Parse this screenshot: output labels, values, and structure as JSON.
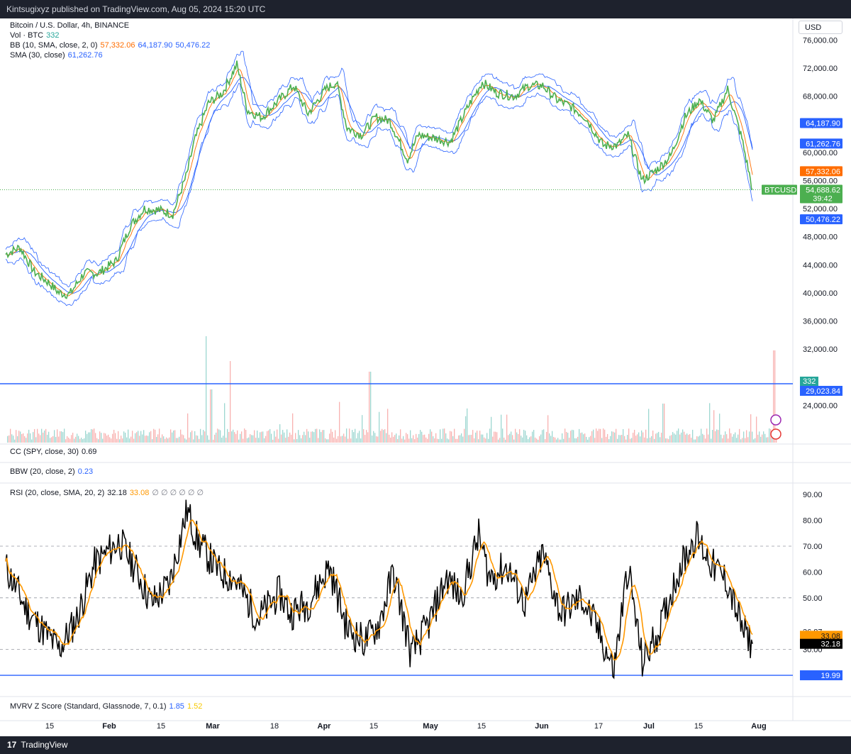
{
  "header": {
    "text": "Kintsugixyz published on TradingView.com, Aug 05, 2024 15:20 UTC"
  },
  "currency_button": "USD",
  "footer": {
    "brand": "TradingView"
  },
  "colors": {
    "candle_line": "#4caf50",
    "bb_upper": "#2962ff",
    "bb_lower": "#2962ff",
    "bb_basis": "#ff6d00",
    "sma": "#2962ff",
    "rsi": "#000000",
    "rsi_ma": "#ff9800",
    "vol_up": "#26a69a",
    "vol_down": "#ef5350"
  },
  "legend": {
    "title": "Bitcoin / U.S. Dollar, 4h, BINANCE",
    "vol_label": "Vol · BTC",
    "vol_value": "332",
    "bb_label": "BB (10, SMA, close, 2, 0)",
    "bb_basis": "57,332.06",
    "bb_upper": "64,187.90",
    "bb_lower": "50,476.22",
    "sma_label": "SMA (30, close)",
    "sma_value": "61,262.76",
    "cc_label": "CC (SPY, close, 30)",
    "cc_value": "0.69",
    "bbw_label": "BBW (20, close, 2)",
    "bbw_value": "0.23",
    "rsi_label": "RSI (20, close, SMA, 20, 2)",
    "rsi_value": "32.18",
    "rsi_ma_value": "33.08",
    "rsi_na": "∅ ∅ ∅ ∅ ∅ ∅",
    "mvrv_label": "MVRV Z Score (Standard, Glassnode, 7, 0.1)",
    "mvrv_value_1": "1.85",
    "mvrv_value_2": "1.52"
  },
  "price_axis": {
    "ticks": [
      "76,000.00",
      "72,000.00",
      "68,000.00",
      "64,000.00",
      "60,000.00",
      "56,000.00",
      "52,000.00",
      "48,000.00",
      "44,000.00",
      "40,000.00",
      "36,000.00",
      "32,000.00",
      "24,000.00"
    ],
    "tick_values": [
      76000,
      72000,
      68000,
      64000,
      60000,
      56000,
      52000,
      48000,
      44000,
      40000,
      36000,
      32000,
      24000
    ]
  },
  "price_labels": [
    {
      "text": "64,187.90",
      "value": 64187.9,
      "color": "#2962ff"
    },
    {
      "text": "61,262.76",
      "value": 61262.76,
      "color": "#2962ff"
    },
    {
      "text": "57,332.06",
      "value": 57332.06,
      "color": "#ff6d00"
    },
    {
      "text": "50,476.22",
      "value": 50476.22,
      "color": "#2962ff"
    }
  ],
  "last_price": {
    "symbol": "BTCUSD",
    "price": "54,688.62",
    "countdown": "39:42",
    "value": 54688.62
  },
  "volume_labels": {
    "vol": "332",
    "line_value": "29,023.84"
  },
  "rsi_axis": {
    "ticks": [
      "90.00",
      "80.00",
      "70.00",
      "60.00",
      "50.00",
      "36.87",
      "32.55",
      "30.00"
    ],
    "tick_values": [
      90,
      80,
      70,
      60,
      50,
      36.87,
      32.55,
      30
    ]
  },
  "rsi_labels": {
    "rsi_ma": "33.08",
    "rsi": "32.18",
    "line": "19.99"
  },
  "chart_data": {
    "type": "line",
    "title": "Bitcoin / U.S. Dollar, 4h, BINANCE",
    "x_tick_labels": [
      "15",
      "Feb",
      "15",
      "Mar",
      "18",
      "Apr",
      "15",
      "May",
      "15",
      "Jun",
      "17",
      "Jul",
      "15",
      "Aug"
    ],
    "price_range": [
      32000,
      78000
    ],
    "price_series_approx": {
      "name": "BTCUSD close (approx.)",
      "dates": [
        "2024-01-08",
        "2024-01-12",
        "2024-01-16",
        "2024-01-20",
        "2024-01-23",
        "2024-01-26",
        "2024-01-30",
        "2024-02-03",
        "2024-02-08",
        "2024-02-12",
        "2024-02-16",
        "2024-02-20",
        "2024-02-24",
        "2024-02-28",
        "2024-03-01",
        "2024-03-05",
        "2024-03-09",
        "2024-03-13",
        "2024-03-16",
        "2024-03-20",
        "2024-03-25",
        "2024-03-29",
        "2024-04-02",
        "2024-04-07",
        "2024-04-10",
        "2024-04-13",
        "2024-04-17",
        "2024-04-21",
        "2024-04-25",
        "2024-04-30",
        "2024-05-03",
        "2024-05-08",
        "2024-05-12",
        "2024-05-17",
        "2024-05-21",
        "2024-05-25",
        "2024-05-30",
        "2024-06-03",
        "2024-06-07",
        "2024-06-11",
        "2024-06-15",
        "2024-06-19",
        "2024-06-24",
        "2024-06-28",
        "2024-07-01",
        "2024-07-05",
        "2024-07-09",
        "2024-07-13",
        "2024-07-17",
        "2024-07-21",
        "2024-07-25",
        "2024-07-29",
        "2024-08-02",
        "2024-08-05"
      ],
      "values": [
        45500,
        46500,
        43000,
        41500,
        40000,
        39800,
        42800,
        42800,
        44500,
        49500,
        52000,
        51800,
        51200,
        57000,
        61500,
        67000,
        68500,
        72500,
        66000,
        65000,
        67500,
        69500,
        65500,
        69000,
        70000,
        63500,
        62500,
        65000,
        64500,
        59000,
        62500,
        62000,
        61500,
        66500,
        70000,
        68500,
        68000,
        69500,
        69500,
        67500,
        66500,
        65000,
        61000,
        61000,
        62500,
        56000,
        57500,
        59500,
        65000,
        67500,
        64500,
        69000,
        62000,
        54688.62
      ]
    },
    "bollinger_last": {
      "basis": 57332.06,
      "upper": 64187.9,
      "lower": 50476.22
    },
    "sma30_last": 61262.76,
    "volume_last": 332,
    "volume_line": 29023.84,
    "rsi": {
      "range": [
        15,
        95
      ],
      "levels": [
        70,
        50,
        30,
        19.99
      ],
      "last": 32.18,
      "ma_last": 33.08,
      "dates": [
        "2024-01-08",
        "2024-01-14",
        "2024-01-20",
        "2024-01-23",
        "2024-01-28",
        "2024-02-02",
        "2024-02-09",
        "2024-02-14",
        "2024-02-18",
        "2024-02-23",
        "2024-02-28",
        "2024-03-02",
        "2024-03-08",
        "2024-03-12",
        "2024-03-19",
        "2024-03-25",
        "2024-03-28",
        "2024-04-02",
        "2024-04-08",
        "2024-04-13",
        "2024-04-18",
        "2024-04-22",
        "2024-04-26",
        "2024-05-01",
        "2024-05-06",
        "2024-05-11",
        "2024-05-15",
        "2024-05-20",
        "2024-05-23",
        "2024-05-28",
        "2024-06-02",
        "2024-06-07",
        "2024-06-12",
        "2024-06-18",
        "2024-06-23",
        "2024-06-27",
        "2024-07-01",
        "2024-07-05",
        "2024-07-10",
        "2024-07-15",
        "2024-07-20",
        "2024-07-25",
        "2024-07-29",
        "2024-08-02",
        "2024-08-05"
      ],
      "values": [
        62,
        45,
        35,
        30,
        42,
        63,
        72,
        60,
        48,
        55,
        84,
        72,
        60,
        58,
        42,
        52,
        44,
        48,
        62,
        38,
        33,
        40,
        60,
        28,
        40,
        58,
        50,
        74,
        58,
        62,
        48,
        67,
        44,
        50,
        36,
        22,
        62,
        25,
        38,
        60,
        74,
        62,
        56,
        38,
        32.18
      ]
    }
  }
}
